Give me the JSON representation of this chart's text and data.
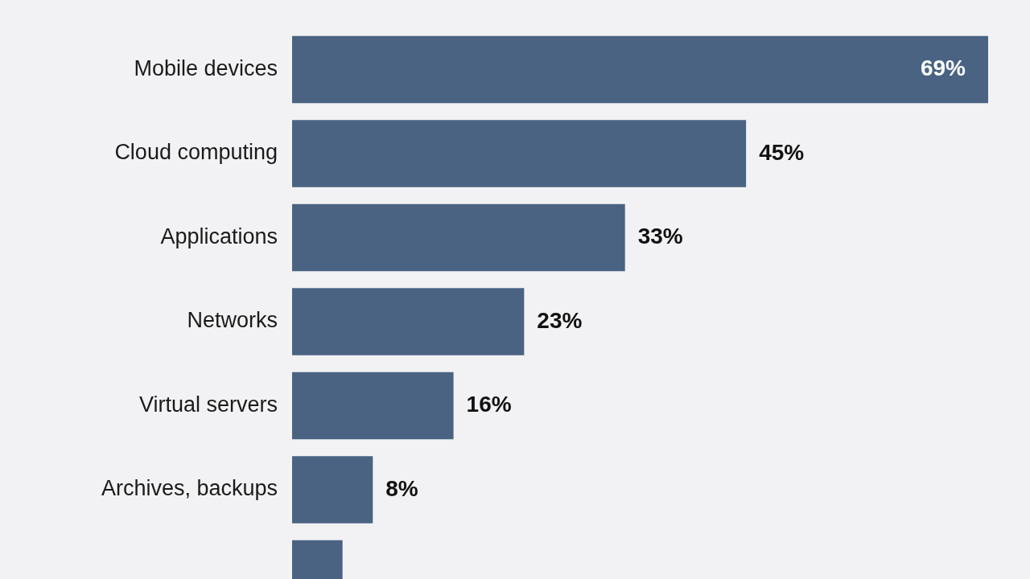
{
  "chart_data": {
    "type": "bar",
    "orientation": "horizontal",
    "tick_labels": "y",
    "grid": false,
    "categories": [
      "Mobile devices",
      "Cloud computing",
      "Applications",
      "Networks",
      "Virtual servers",
      "Archives, backups",
      null
    ],
    "values": [
      69,
      45,
      33,
      23,
      16,
      8,
      5
    ],
    "value_labels": [
      "69%",
      "45%",
      "33%",
      "23%",
      "16%",
      "8%",
      null
    ],
    "color": "#4a6382"
  }
}
